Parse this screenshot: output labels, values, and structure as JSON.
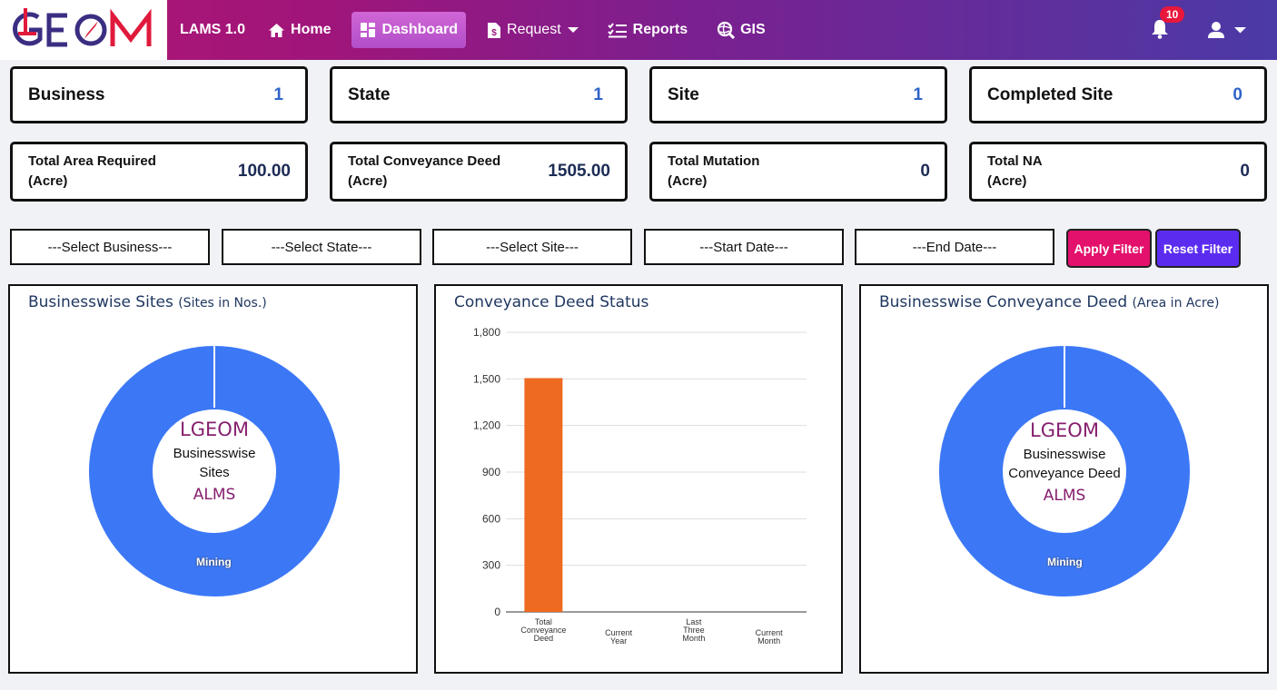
{
  "header": {
    "app_name": "LAMS 1.0",
    "nav": {
      "home": "Home",
      "dashboard": "Dashboard",
      "request": "Request",
      "reports": "Reports",
      "gis": "GIS"
    },
    "notification_count": "10",
    "icons": [
      "home-icon",
      "dashboard-icon",
      "request-icon",
      "reports-icon",
      "gis-icon",
      "bell-icon",
      "user-icon"
    ]
  },
  "stats_top": [
    {
      "label": "Business",
      "value": "1"
    },
    {
      "label": "State",
      "value": "1"
    },
    {
      "label": "Site",
      "value": "1"
    },
    {
      "label": "Completed Site",
      "value": "0"
    }
  ],
  "stats_area": [
    {
      "label": "Total Area Required",
      "unit": "(Acre)",
      "value": "100.00"
    },
    {
      "label": "Total Conveyance Deed",
      "unit": "(Acre)",
      "value": "1505.00"
    },
    {
      "label": "Total Mutation",
      "unit": "(Acre)",
      "value": "0"
    },
    {
      "label": "Total NA",
      "unit": "(Acre)",
      "value": "0"
    }
  ],
  "filters": {
    "business": "---Select Business---",
    "state": "---Select State---",
    "site": "---Select Site---",
    "start_date": "---Start Date---",
    "end_date": "---End Date---",
    "apply": "Apply Filter",
    "reset": "Reset Filter"
  },
  "colors": {
    "accent_pink": "#e3116c",
    "accent_purple": "#5b2cf0",
    "donut_blue": "#3c78f6",
    "bar_orange": "#ee6a21",
    "stat_value_blue": "#2f63c8"
  },
  "panels": {
    "sites": {
      "title": "Businesswise Sites",
      "subtitle": "(Sites in Nos.)",
      "center_brand": "LGEOM",
      "center_line1": "Businesswise",
      "center_line2": "Sites",
      "center_brand2": "ALMS"
    },
    "status": {
      "title": "Conveyance Deed Status"
    },
    "deed": {
      "title": "Businesswise Conveyance Deed",
      "subtitle": "(Area in Acre)",
      "center_brand": "LGEOM",
      "center_line1": "Businesswise",
      "center_line2": "Conveyance Deed",
      "center_brand2": "ALMS"
    }
  },
  "chart_data": [
    {
      "type": "pie",
      "title": "Businesswise Sites",
      "subtitle": "(Sites in Nos.)",
      "categories": [
        "Mining"
      ],
      "values": [
        1
      ]
    },
    {
      "type": "bar",
      "title": "Conveyance Deed Status",
      "categories": [
        [
          "Total",
          "Conveyance",
          "Deed"
        ],
        [
          "Current",
          "Year"
        ],
        [
          "Last",
          "Three",
          "Month"
        ],
        [
          "Current",
          "Month"
        ]
      ],
      "values": [
        1505,
        0,
        0,
        0
      ],
      "yticks": [
        "0",
        "300",
        "600",
        "900",
        "1,200",
        "1,500",
        "1,800"
      ],
      "ylim": [
        0,
        1800
      ],
      "grid": true
    },
    {
      "type": "pie",
      "title": "Businesswise Conveyance Deed",
      "subtitle": "(Area in Acre)",
      "categories": [
        "Mining"
      ],
      "values": [
        1505
      ]
    }
  ]
}
